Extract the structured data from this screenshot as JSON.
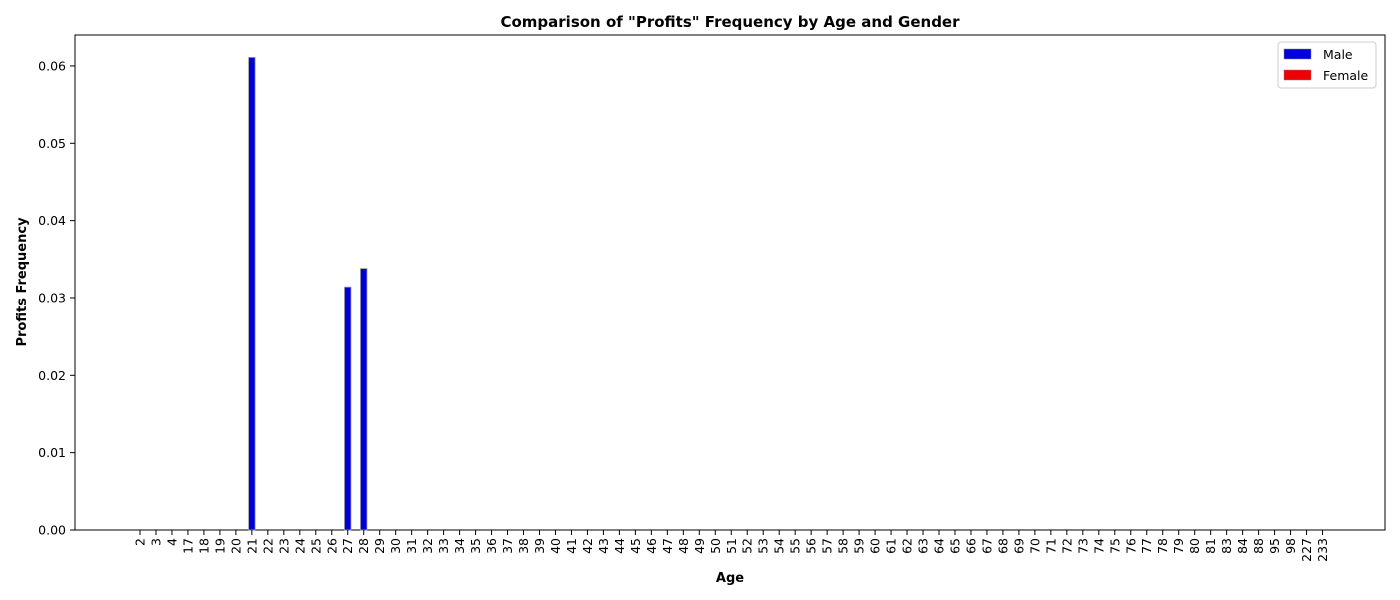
{
  "chart_data": {
    "type": "bar",
    "title": "Comparison of \"Profits\" Frequency by Age and Gender",
    "xlabel": "Age",
    "ylabel": "Profits Frequency",
    "ylim": [
      0,
      0.064
    ],
    "yticks": [
      "0.00",
      "0.01",
      "0.02",
      "0.03",
      "0.04",
      "0.05",
      "0.06"
    ],
    "grid": false,
    "legend_position": "top-right",
    "categories": [
      "2",
      "3",
      "4",
      "17",
      "18",
      "19",
      "20",
      "21",
      "22",
      "23",
      "24",
      "25",
      "26",
      "27",
      "28",
      "29",
      "30",
      "31",
      "32",
      "33",
      "34",
      "35",
      "36",
      "37",
      "38",
      "39",
      "40",
      "41",
      "42",
      "43",
      "44",
      "45",
      "46",
      "47",
      "48",
      "49",
      "50",
      "51",
      "52",
      "53",
      "54",
      "55",
      "56",
      "57",
      "58",
      "59",
      "60",
      "61",
      "62",
      "63",
      "64",
      "65",
      "66",
      "67",
      "68",
      "69",
      "70",
      "71",
      "72",
      "73",
      "74",
      "75",
      "76",
      "77",
      "78",
      "79",
      "80",
      "81",
      "83",
      "84",
      "88",
      "95",
      "98",
      "227",
      "233"
    ],
    "series": [
      {
        "name": "Male",
        "color": "#0000dd",
        "values": [
          0,
          0,
          0,
          0,
          0,
          0,
          0,
          0.0611,
          0,
          0,
          0,
          0,
          0,
          0.0314,
          0.0338,
          0,
          0,
          0,
          0,
          0,
          0,
          0,
          0,
          0,
          0,
          0,
          0,
          0,
          0,
          0,
          0,
          0,
          0,
          0,
          0,
          0,
          0,
          0,
          0,
          0,
          0,
          0,
          0,
          0,
          0,
          0,
          0,
          0,
          0,
          0,
          0,
          0,
          0,
          0,
          0,
          0,
          0,
          0,
          0,
          0,
          0,
          0,
          0,
          0,
          0,
          0,
          0,
          0,
          0,
          0,
          0,
          0,
          0,
          0,
          0
        ]
      },
      {
        "name": "Female",
        "color": "#ee0000",
        "values": [
          0,
          0,
          0,
          0,
          0,
          0,
          0,
          0,
          0,
          0,
          0,
          0,
          0,
          0,
          0,
          0,
          0,
          0,
          0,
          0,
          0,
          0,
          0,
          0,
          0,
          0,
          0,
          0,
          0,
          0,
          0,
          0,
          0,
          0,
          0,
          0,
          0,
          0,
          0,
          0,
          0,
          0,
          0,
          0,
          0,
          0,
          0,
          0,
          0,
          0,
          0,
          0,
          0,
          0,
          0,
          0,
          0,
          0,
          0,
          0,
          0,
          0,
          0,
          0,
          0,
          0,
          0,
          0,
          0,
          0,
          0,
          0,
          0,
          0,
          0
        ]
      }
    ]
  }
}
